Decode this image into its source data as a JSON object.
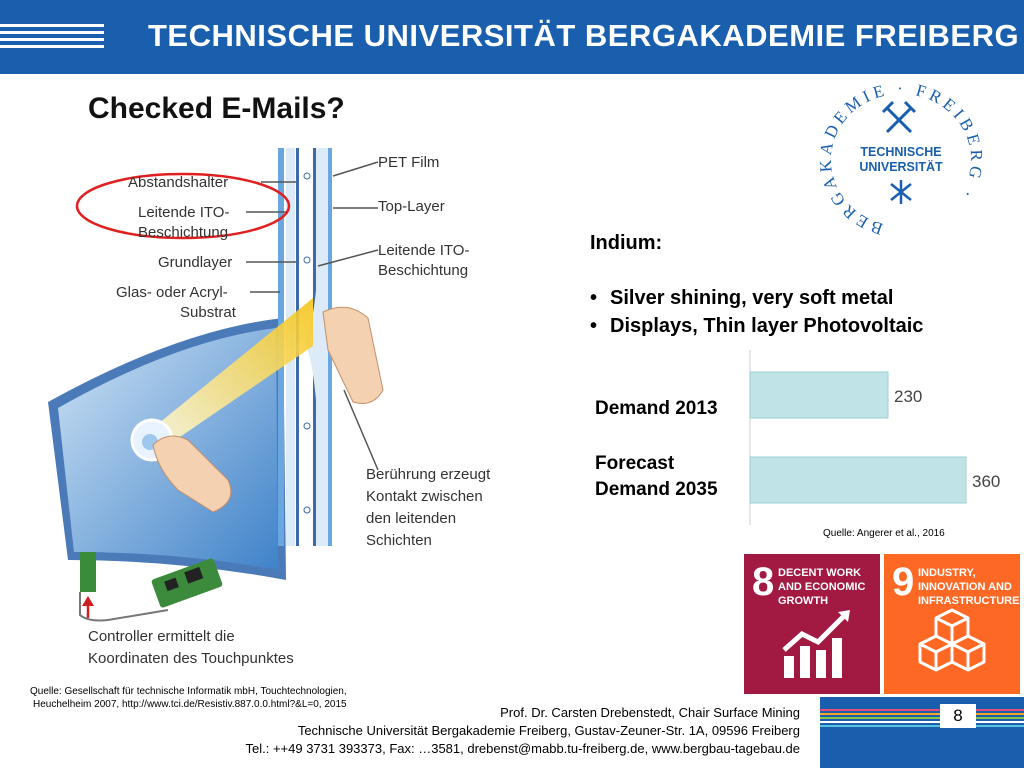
{
  "header": {
    "university_title": "TECHNISCHE UNIVERSITÄT BERGAKADEMIE FREIBERG",
    "brand_color": "#1a5fae"
  },
  "slide": {
    "title": "Checked E-Mails?"
  },
  "seal": {
    "ring_text": "BERGAKADEMIE · FREIBERG ·",
    "center_line1": "TECHNISCHE",
    "center_line2": "UNIVERSITÄT"
  },
  "diagram": {
    "labels": {
      "abstandshalter": "Abstandshalter",
      "leitende_1": "Leitende ITO-",
      "leitende_2": "Beschichtung",
      "grundlayer": "Grundlayer",
      "glas_1": "Glas- oder Acryl-",
      "glas_2": "Substrat",
      "pet": "PET Film",
      "top": "Top-Layer",
      "leitende_r1": "Leitende ITO-",
      "leitende_r2": "Beschichtung",
      "beruehrung_1": "Berührung erzeugt",
      "beruehrung_2": "Kontakt zwischen",
      "beruehrung_3": "den leitenden",
      "beruehrung_4": "Schichten",
      "controller_1": "Controller ermittelt die",
      "controller_2": "Koordinaten des Touchpunktes"
    },
    "source_line1": "Quelle: Gesellschaft für technische Informatik mbH, Touchtechnologien,",
    "source_line2": "Heuchelheim 2007, http://www.tci.de/Resistiv.887.0.0.html?&L=0, 2015",
    "highlight_color": "#e02020"
  },
  "indium": {
    "title": "Indium:",
    "bullets": [
      "Silver shining, very soft metal",
      "Displays, Thin layer Photovoltaic"
    ]
  },
  "chart_data": {
    "type": "bar",
    "orientation": "horizontal",
    "categories": [
      "Demand 2013",
      "Forecast Demand 2035"
    ],
    "category_lines": [
      [
        "Demand 2013"
      ],
      [
        "Forecast",
        "Demand 2035"
      ]
    ],
    "values": [
      230,
      360
    ],
    "value_labels": [
      "230",
      "360"
    ],
    "bar_color": "#bfe3e6",
    "xlim": [
      0,
      400
    ],
    "title": "",
    "xlabel": "",
    "ylabel": "",
    "grid": false,
    "source": "Quelle: Angerer et al., 2016"
  },
  "sdg": [
    {
      "number": "8",
      "text": "DECENT WORK AND ECONOMIC GROWTH",
      "color": "#a21942",
      "icon": "growth-chart-icon"
    },
    {
      "number": "9",
      "text": "INDUSTRY, INNOVATION AND INFRASTRUCTURE",
      "color": "#fd6925",
      "icon": "cubes-icon"
    }
  ],
  "footer": {
    "author": "Prof. Dr. Carsten Drebenstedt, Chair Surface Mining",
    "address": "Technische Universität Bergakademie Freiberg, Gustav-Zeuner-Str. 1A,  09596 Freiberg",
    "contact": "Tel.: ++49 3731 393373, Fax: …3581, drebenst@mabb.tu-freiberg.de, www.bergbau-tagebau.de",
    "page_number": "8",
    "stripe_colors": [
      "#e94e77",
      "#f6a623",
      "#8bc34a",
      "#ffffff",
      "#5bc0de"
    ]
  }
}
